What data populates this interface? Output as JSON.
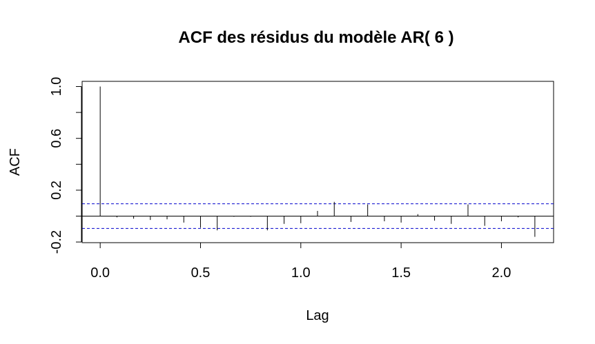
{
  "chart_data": {
    "type": "bar",
    "title": "ACF des résidus du modèle AR( 6 )",
    "xlabel": "Lag",
    "ylabel": "ACF",
    "xlim": [
      -0.09,
      2.26
    ],
    "ylim": [
      -0.205,
      1.04
    ],
    "xticks": [
      0.0,
      0.5,
      1.0,
      1.5,
      2.0
    ],
    "xtick_labels": [
      "0.0",
      "0.5",
      "1.0",
      "1.5",
      "2.0"
    ],
    "yticks": [
      -0.2,
      0.0,
      0.2,
      0.4,
      0.6,
      0.8,
      1.0
    ],
    "ytick_labels": [
      "-0.2",
      "",
      "0.2",
      "",
      "0.6",
      "",
      "1.0"
    ],
    "confidence_bound": 0.095,
    "bound_color": "#0000cc",
    "lags": [
      0.0,
      0.0833,
      0.1667,
      0.25,
      0.3333,
      0.4167,
      0.5,
      0.5833,
      0.6667,
      0.75,
      0.8333,
      0.9167,
      1.0,
      1.0833,
      1.1667,
      1.25,
      1.3333,
      1.4167,
      1.5,
      1.5833,
      1.6667,
      1.75,
      1.8333,
      1.9167,
      2.0,
      2.0833,
      2.1667
    ],
    "values": [
      1.0,
      -0.01,
      -0.02,
      -0.03,
      -0.025,
      -0.05,
      -0.09,
      -0.11,
      -0.005,
      -0.005,
      -0.11,
      -0.06,
      -0.055,
      0.04,
      0.11,
      -0.045,
      0.09,
      -0.04,
      -0.05,
      0.015,
      -0.035,
      -0.06,
      0.09,
      -0.075,
      -0.04,
      -0.01,
      -0.16
    ]
  }
}
